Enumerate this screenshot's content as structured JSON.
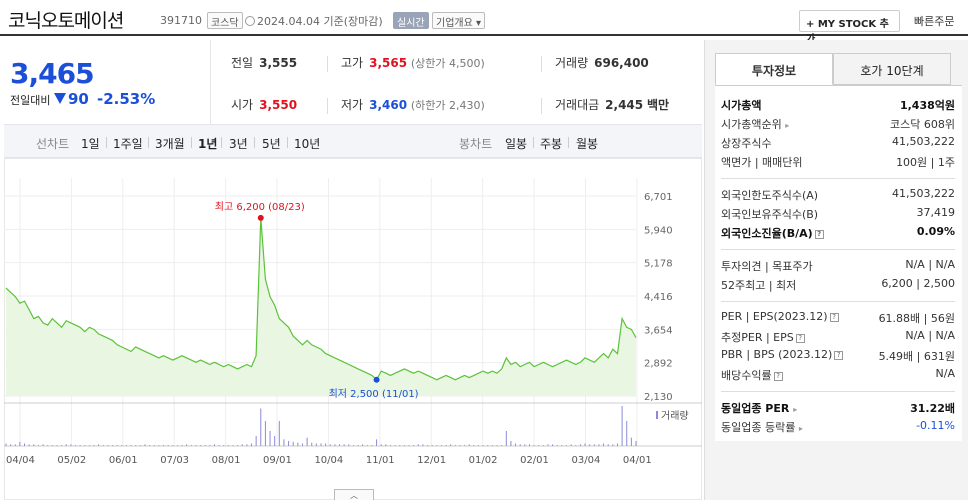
{
  "header": {
    "name": "코닉오토메이션",
    "code": "391710",
    "market": "코스닥",
    "date": "2024.04.04",
    "basis": "기준(장마감)",
    "realtime": "실시간",
    "company_info": "기업개요 ▾",
    "mystock": "+ MY STOCK 추가",
    "quick_order": "빠른주문"
  },
  "price": {
    "current": "3,465",
    "vs_label": "전일대비",
    "change": "90",
    "change_pct": "-2.53%"
  },
  "summary": {
    "prev_label": "전일",
    "prev": "3,555",
    "high_label": "고가",
    "high": "3,565",
    "upper_limit": "(상한가 4,500)",
    "volume_label": "거래량",
    "volume": "696,400",
    "open_label": "시가",
    "open": "3,550",
    "low_label": "저가",
    "low": "3,460",
    "lower_limit": "(하한가 2,430)",
    "amount_label": "거래대금",
    "amount": "2,445",
    "amount_unit": "백만"
  },
  "period_bar": {
    "line_label": "선차트",
    "line_periods": [
      "1일",
      "1주일",
      "3개월",
      "1년",
      "3년",
      "5년",
      "10년"
    ],
    "candle_label": "봉차트",
    "candle_periods": [
      "일봉",
      "주봉",
      "월봉"
    ]
  },
  "chart_data": {
    "type": "area",
    "y_ticks": [
      "6,701",
      "5,940",
      "5,178",
      "4,416",
      "3,654",
      "2,892",
      "2,130"
    ],
    "x_ticks": [
      "04/04",
      "05/02",
      "06/01",
      "07/03",
      "08/01",
      "09/01",
      "10/04",
      "11/01",
      "12/01",
      "01/02",
      "02/01",
      "03/04",
      "04/01"
    ],
    "ylim": [
      2130,
      6701
    ],
    "high_annotation": "최고 6,200 (08/23)",
    "low_annotation": "최저 2,500 (11/01)",
    "volume_label": "거래량",
    "series": [
      {
        "values": [
          4600,
          4500,
          4400,
          4250,
          4300,
          4100,
          3900,
          3950,
          3800,
          3750,
          3900,
          3800,
          3700,
          3850,
          3800,
          3750,
          3700,
          3600,
          3700,
          3650,
          3550,
          3500,
          3450,
          3400,
          3300,
          3250,
          3200,
          3150,
          3250,
          3200,
          3150,
          3100,
          3050,
          3000,
          3050,
          3000,
          2950,
          3000,
          3050,
          3000,
          2950,
          2900,
          2950,
          2900,
          2850,
          2900,
          2850,
          2800,
          2850,
          2800,
          2750,
          2800,
          2850,
          2800,
          3050,
          6200,
          4800,
          4400,
          4200,
          3900,
          3800,
          3700,
          3500,
          3400,
          3300,
          3400,
          3300,
          3250,
          3200,
          3100,
          3050,
          3000,
          2950,
          2900,
          2850,
          2800,
          2750,
          2700,
          2650,
          2600,
          2500,
          2700,
          2650,
          2600,
          2650,
          2700,
          2750,
          2700,
          2650,
          2700,
          2650,
          2600,
          2550,
          2500,
          2550,
          2600,
          2550,
          2500,
          2550,
          2600,
          2550,
          2600,
          2650,
          2700,
          2650,
          2700,
          2650,
          2750,
          3000,
          2850,
          2900,
          2800,
          2850,
          2900,
          2800,
          2850,
          2900,
          2850,
          2800,
          2850,
          2900,
          2950,
          2900,
          2850,
          2900,
          3000,
          2950,
          2900,
          3000,
          3100,
          3000,
          3200,
          3100,
          3900,
          3700,
          3650,
          3465
        ]
      }
    ],
    "volume_values": [
      3,
      2,
      2,
      5,
      3,
      2,
      2,
      1,
      2,
      1,
      1,
      1,
      1,
      2,
      2,
      1,
      1,
      1,
      1,
      1,
      2,
      1,
      1,
      1,
      1,
      1,
      1,
      1,
      1,
      1,
      2,
      1,
      1,
      1,
      1,
      1,
      1,
      1,
      1,
      2,
      1,
      1,
      1,
      1,
      1,
      2,
      1,
      1,
      1,
      1,
      1,
      2,
      2,
      3,
      12,
      45,
      30,
      18,
      12,
      30,
      8,
      6,
      5,
      4,
      3,
      10,
      4,
      3,
      3,
      3,
      2,
      2,
      2,
      2,
      2,
      1,
      1,
      2,
      1,
      1,
      8,
      2,
      2,
      1,
      1,
      1,
      1,
      1,
      1,
      2,
      2,
      1,
      1,
      1,
      1,
      1,
      2,
      1,
      1,
      1,
      2,
      1,
      1,
      1,
      1,
      1,
      1,
      1,
      18,
      6,
      3,
      2,
      2,
      2,
      1,
      1,
      1,
      2,
      2,
      1,
      1,
      1,
      2,
      1,
      2,
      3,
      2,
      2,
      2,
      3,
      2,
      2,
      3,
      48,
      30,
      10,
      6
    ]
  },
  "side": {
    "tab_active": "투자정보",
    "tab_inactive": "호가 10단계",
    "rows": {
      "mcap_k": "시가총액",
      "mcap_v": "1,438억원",
      "rank_k": "시가총액순위",
      "rank_v": "코스닥 608위",
      "shares_k": "상장주식수",
      "shares_v": "41,503,222",
      "par_k": "액면가 | 매매단위",
      "par_v": "100원 | 1주",
      "flim_k": "외국인한도주식수(A)",
      "flim_v": "41,503,222",
      "fhold_k": "외국인보유주식수(B)",
      "fhold_v": "37,419",
      "fratio_k": "외국인소진율(B/A)",
      "fratio_v": "0.09%",
      "opinion_k": "투자의견 | 목표주가",
      "opinion_v": "N/A | N/A",
      "w52_k": "52주최고 | 최저",
      "w52_v": "6,200 | 2,500",
      "per_k": "PER | EPS(2023.12)",
      "per_v": "61.88배 | 56원",
      "eper_k": "추정PER | EPS",
      "eper_v": "N/A | N/A",
      "pbr_k": "PBR | BPS (2023.12)",
      "pbr_v": "5.49배 | 631원",
      "div_k": "배당수익률",
      "div_v": "N/A",
      "sper_k": "동일업종 PER",
      "sper_v": "31.22배",
      "srate_k": "동일업종 등락률",
      "srate_v": "-0.11%"
    }
  },
  "colors": {
    "up": "#e0121f",
    "down": "#1b4fd8",
    "line": "#5cc23a",
    "fill": "#e9f7e2"
  }
}
